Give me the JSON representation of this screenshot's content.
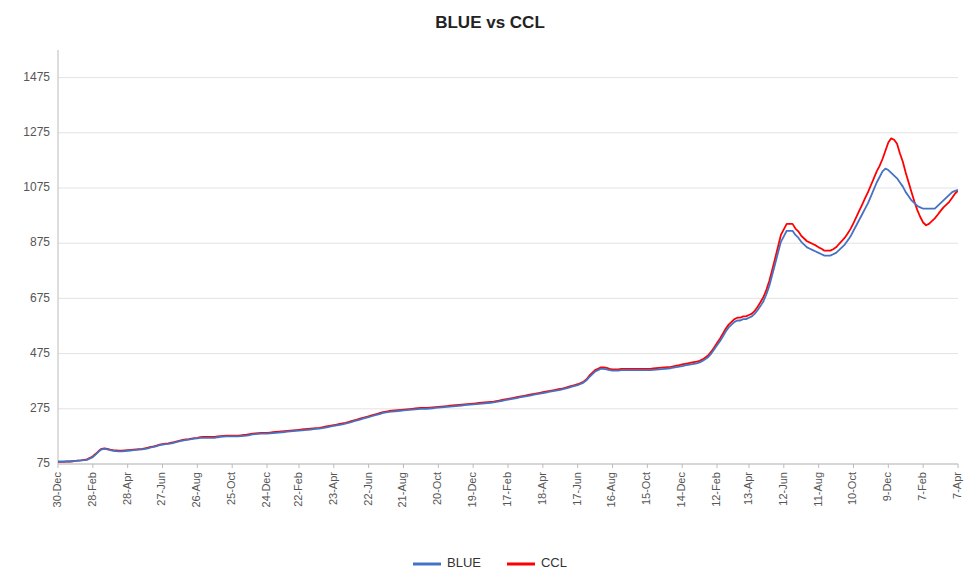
{
  "chart_data": {
    "type": "line",
    "title": "BLUE vs CCL",
    "categories": [
      "30-Dec",
      null,
      null,
      null,
      null,
      null,
      null,
      null,
      null,
      null,
      null,
      null,
      "28-Feb",
      null,
      null,
      null,
      null,
      null,
      null,
      null,
      null,
      null,
      null,
      null,
      "28-Apr",
      null,
      null,
      null,
      null,
      null,
      null,
      null,
      null,
      null,
      null,
      null,
      "27-Jun",
      null,
      null,
      null,
      null,
      null,
      null,
      null,
      null,
      null,
      null,
      null,
      "26-Aug",
      null,
      null,
      null,
      null,
      null,
      null,
      null,
      null,
      null,
      null,
      null,
      "25-Oct",
      null,
      null,
      null,
      null,
      null,
      null,
      null,
      null,
      null,
      null,
      null,
      "24-Dec",
      null,
      null,
      null,
      null,
      null,
      null,
      null,
      null,
      null,
      null,
      "22-Feb",
      null,
      null,
      null,
      null,
      null,
      null,
      null,
      null,
      null,
      null,
      null,
      "23-Apr",
      null,
      null,
      null,
      null,
      null,
      null,
      null,
      null,
      null,
      null,
      null,
      "22-Jun",
      null,
      null,
      null,
      null,
      null,
      null,
      null,
      null,
      null,
      null,
      null,
      "21-Aug",
      null,
      null,
      null,
      null,
      null,
      null,
      null,
      null,
      null,
      null,
      null,
      "20-Oct",
      null,
      null,
      null,
      null,
      null,
      null,
      null,
      null,
      null,
      null,
      null,
      "19-Dec",
      null,
      null,
      null,
      null,
      null,
      null,
      null,
      null,
      null,
      null,
      null,
      "17-Feb",
      null,
      null,
      null,
      null,
      null,
      null,
      null,
      null,
      null,
      null,
      null,
      "18-Apr",
      null,
      null,
      null,
      null,
      null,
      null,
      null,
      null,
      null,
      null,
      null,
      "17-Jun",
      null,
      null,
      null,
      null,
      null,
      null,
      null,
      null,
      null,
      null,
      null,
      "16-Aug",
      null,
      null,
      null,
      null,
      null,
      null,
      null,
      null,
      null,
      null,
      null,
      "15-Oct",
      null,
      null,
      null,
      null,
      null,
      null,
      null,
      null,
      null,
      null,
      null,
      "14-Dec",
      null,
      null,
      null,
      null,
      null,
      null,
      null,
      null,
      null,
      null,
      null,
      "12-Feb",
      null,
      null,
      null,
      null,
      null,
      null,
      null,
      null,
      null,
      null,
      "13-Apr",
      null,
      null,
      null,
      null,
      null,
      null,
      null,
      null,
      null,
      null,
      null,
      "12-Jun",
      null,
      null,
      null,
      null,
      null,
      null,
      null,
      null,
      null,
      null,
      null,
      "11-Aug",
      null,
      null,
      null,
      null,
      null,
      null,
      null,
      null,
      null,
      null,
      null,
      "10-Oct",
      null,
      null,
      null,
      null,
      null,
      null,
      null,
      null,
      null,
      null,
      null,
      "9-Dec",
      null,
      null,
      null,
      null,
      null,
      null,
      null,
      null,
      null,
      null,
      null,
      "7-Feb",
      null,
      null,
      null,
      null,
      null,
      null,
      null,
      null,
      null,
      null,
      null,
      "7-Apr"
    ],
    "series": [
      {
        "name": "BLUE",
        "color": "#4472C4",
        "values": [
          84,
          84,
          84,
          84,
          84,
          85,
          86,
          87,
          88,
          89,
          90,
          95,
          100,
          110,
          120,
          128,
          130,
          128,
          125,
          123,
          122,
          121,
          121,
          122,
          123,
          124,
          125,
          126,
          127,
          128,
          130,
          132,
          135,
          137,
          140,
          143,
          145,
          147,
          148,
          150,
          152,
          155,
          158,
          160,
          162,
          163,
          165,
          167,
          168,
          170,
          170,
          170,
          170,
          170,
          170,
          172,
          173,
          174,
          175,
          175,
          175,
          175,
          175,
          176,
          177,
          178,
          180,
          182,
          183,
          184,
          185,
          185,
          185,
          186,
          187,
          188,
          189,
          190,
          191,
          192,
          193,
          194,
          195,
          196,
          197,
          198,
          199,
          200,
          201,
          202,
          203,
          205,
          207,
          209,
          211,
          213,
          215,
          217,
          219,
          221,
          224,
          227,
          230,
          233,
          236,
          239,
          242,
          245,
          248,
          251,
          254,
          257,
          260,
          262,
          264,
          265,
          266,
          267,
          268,
          269,
          270,
          271,
          272,
          273,
          274,
          275,
          275,
          275,
          276,
          277,
          278,
          279,
          280,
          281,
          282,
          283,
          284,
          285,
          286,
          287,
          288,
          289,
          290,
          291,
          292,
          293,
          294,
          295,
          296,
          297,
          298,
          300,
          302,
          304,
          306,
          308,
          310,
          312,
          314,
          316,
          318,
          320,
          322,
          324,
          326,
          328,
          330,
          332,
          334,
          336,
          338,
          340,
          342,
          344,
          346,
          349,
          352,
          355,
          358,
          361,
          365,
          370,
          378,
          390,
          400,
          410,
          415,
          420,
          420,
          418,
          415,
          413,
          413,
          413,
          415,
          415,
          415,
          415,
          415,
          415,
          415,
          415,
          415,
          415,
          415,
          416,
          417,
          418,
          419,
          420,
          421,
          422,
          424,
          426,
          428,
          430,
          432,
          434,
          436,
          438,
          440,
          443,
          448,
          455,
          463,
          475,
          490,
          505,
          520,
          537,
          555,
          570,
          580,
          590,
          595,
          595,
          600,
          600,
          605,
          610,
          620,
          633,
          648,
          665,
          690,
          720,
          760,
          800,
          840,
          880,
          900,
          920,
          920,
          920,
          905,
          895,
          880,
          870,
          860,
          855,
          850,
          845,
          840,
          835,
          830,
          830,
          830,
          835,
          840,
          850,
          860,
          870,
          885,
          900,
          920,
          940,
          960,
          980,
          1000,
          1020,
          1045,
          1070,
          1095,
          1115,
          1135,
          1145,
          1140,
          1130,
          1120,
          1110,
          1095,
          1080,
          1060,
          1045,
          1030,
          1020,
          1010,
          1005,
          1000,
          1000,
          1000,
          1000,
          1000,
          1010,
          1020,
          1030,
          1040,
          1050,
          1060,
          1065,
          1068
        ]
      },
      {
        "name": "CCL",
        "color": "#FF0000",
        "values": [
          83,
          83,
          83,
          84,
          84,
          85,
          86,
          87,
          88,
          90,
          92,
          97,
          103,
          112,
          122,
          130,
          132,
          130,
          127,
          125,
          124,
          123,
          123,
          124,
          125,
          126,
          127,
          128,
          129,
          130,
          132,
          134,
          137,
          139,
          142,
          145,
          147,
          149,
          150,
          152,
          154,
          157,
          160,
          162,
          164,
          165,
          167,
          169,
          170,
          172,
          173,
          173,
          173,
          173,
          173,
          175,
          176,
          177,
          178,
          178,
          178,
          178,
          178,
          179,
          180,
          181,
          183,
          185,
          186,
          187,
          188,
          188,
          188,
          189,
          190,
          191,
          192,
          193,
          194,
          195,
          196,
          197,
          198,
          199,
          200,
          201,
          202,
          203,
          204,
          205,
          206,
          208,
          210,
          212,
          214,
          216,
          218,
          220,
          222,
          224,
          227,
          230,
          233,
          236,
          239,
          242,
          245,
          248,
          251,
          254,
          257,
          260,
          263,
          265,
          267,
          268,
          269,
          270,
          271,
          272,
          273,
          274,
          275,
          276,
          277,
          278,
          278,
          278,
          279,
          280,
          281,
          282,
          283,
          284,
          285,
          286,
          287,
          288,
          289,
          290,
          291,
          292,
          293,
          294,
          295,
          296,
          297,
          298,
          299,
          300,
          301,
          303,
          305,
          307,
          309,
          311,
          313,
          315,
          317,
          319,
          321,
          323,
          325,
          327,
          329,
          331,
          333,
          335,
          337,
          339,
          341,
          343,
          345,
          347,
          349,
          352,
          355,
          358,
          361,
          364,
          368,
          373,
          381,
          395,
          405,
          415,
          420,
          425,
          425,
          423,
          420,
          418,
          418,
          418,
          420,
          420,
          420,
          420,
          420,
          420,
          420,
          420,
          420,
          420,
          420,
          421,
          422,
          423,
          424,
          425,
          426,
          427,
          429,
          431,
          433,
          436,
          438,
          440,
          442,
          444,
          446,
          449,
          454,
          461,
          469,
          482,
          497,
          513,
          529,
          547,
          565,
          580,
          590,
          600,
          605,
          605,
          610,
          610,
          615,
          620,
          630,
          645,
          662,
          680,
          706,
          738,
          778,
          820,
          862,
          905,
          925,
          945,
          945,
          945,
          928,
          918,
          902,
          892,
          882,
          877,
          872,
          867,
          860,
          855,
          848,
          848,
          848,
          853,
          860,
          872,
          883,
          895,
          910,
          927,
          948,
          970,
          993,
          1015,
          1038,
          1060,
          1085,
          1110,
          1135,
          1155,
          1180,
          1210,
          1240,
          1255,
          1250,
          1235,
          1200,
          1170,
          1130,
          1095,
          1060,
          1025,
          995,
          970,
          950,
          940,
          945,
          955,
          965,
          978,
          992,
          1005,
          1015,
          1025,
          1040,
          1055,
          1065
        ]
      }
    ],
    "ylim": [
      75,
      1575
    ],
    "yticks": [
      75,
      275,
      475,
      675,
      875,
      1075,
      1275,
      1475
    ],
    "grid": true,
    "legend": "bottom"
  }
}
